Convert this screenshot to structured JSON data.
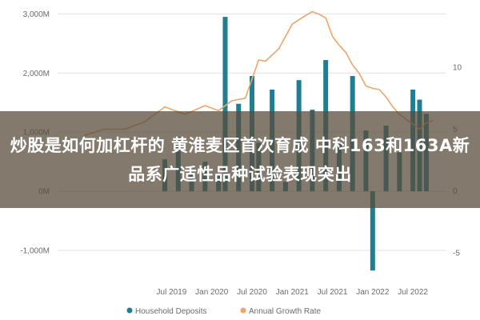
{
  "headline": "炒股是如何加杠杆的 黄淮麦区首次育成 中科163和163A新品系广适性品种试验表现突出",
  "chart_data": {
    "type": "bar",
    "series": [
      {
        "name": "Household Deposits",
        "kind": "bar",
        "axis": "left",
        "color": "#1f7f91",
        "x": [
          "2019-06",
          "2019-08",
          "2019-10",
          "2019-12",
          "2020-02",
          "2020-03",
          "2020-05",
          "2020-07",
          "2020-08",
          "2020-10",
          "2020-12",
          "2021-02",
          "2021-04",
          "2021-06",
          "2021-08",
          "2021-10",
          "2021-12",
          "2022-01",
          "2022-03",
          "2022-05",
          "2022-07",
          "2022-08",
          "2022-09"
        ],
        "values": [
          540,
          920,
          320,
          500,
          280,
          2950,
          1480,
          1950,
          820,
          1720,
          160,
          1880,
          1380,
          2220,
          800,
          1950,
          1030,
          -1340,
          1110,
          660,
          1720,
          1550,
          1310
        ]
      },
      {
        "name": "Annual Growth Rate",
        "kind": "line",
        "axis": "right",
        "color": "#f2a468",
        "x": [
          "2018-06",
          "2018-09",
          "2018-12",
          "2019-03",
          "2019-06",
          "2019-09",
          "2019-12",
          "2020-02",
          "2020-04",
          "2020-06",
          "2020-08",
          "2020-09",
          "2020-11",
          "2021-01",
          "2021-03",
          "2021-04",
          "2021-05",
          "2021-06",
          "2021-07",
          "2021-08",
          "2021-09",
          "2021-10",
          "2021-11",
          "2021-12",
          "2022-01",
          "2022-02",
          "2022-03",
          "2022-04",
          "2022-05",
          "2022-06",
          "2022-07",
          "2022-08",
          "2022-09",
          "2022-10"
        ],
        "values": [
          4.5,
          5.0,
          5.0,
          5.6,
          6.8,
          6.2,
          6.9,
          6.5,
          7.3,
          7.5,
          10.6,
          10.5,
          11.5,
          13.5,
          14.2,
          14.5,
          14.3,
          14.0,
          12.5,
          11.8,
          11.2,
          10.2,
          9.5,
          8.5,
          8.3,
          8.2,
          7.6,
          6.8,
          6.2,
          5.8,
          5.4,
          5.0,
          5.5,
          5.7
        ]
      }
    ],
    "y_left": {
      "ticks": [
        3000,
        2000,
        1000,
        0,
        -1000
      ],
      "tick_labels": [
        "3,000M",
        "2,000M",
        "1,000M",
        "0M",
        "-1,000M"
      ],
      "lim": [
        -1500,
        3100
      ]
    },
    "y_right": {
      "ticks": [
        10,
        5,
        0,
        -5
      ],
      "tick_labels": [
        "10",
        "5",
        "0",
        "-5"
      ],
      "lim": [
        -7.2,
        14.8
      ]
    },
    "x_ticks": [
      {
        "date": "2019-07",
        "label": "Jul 2019"
      },
      {
        "date": "2020-01",
        "label": "Jan 2020"
      },
      {
        "date": "2020-07",
        "label": "Jul 2020"
      },
      {
        "date": "2021-01",
        "label": "Jan 2021"
      },
      {
        "date": "2021-07",
        "label": "Jul 2021"
      },
      {
        "date": "2022-01",
        "label": "Jan 2022"
      },
      {
        "date": "2022-07",
        "label": "Jul 2022"
      }
    ],
    "x_range": [
      "2018-02",
      "2022-12"
    ],
    "legend": {
      "placement": "bottom",
      "entries": [
        "Household Deposits",
        "Annual Growth Rate"
      ]
    },
    "grid": "horizontal"
  }
}
